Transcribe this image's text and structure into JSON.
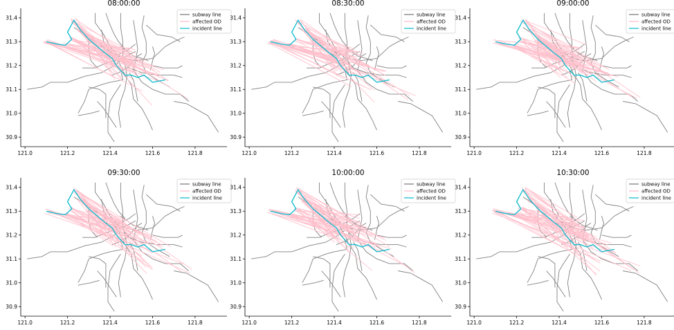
{
  "colors": {
    "subway": "#808080",
    "affected": "#ffc0cb",
    "incident": "#17becf"
  },
  "legend": {
    "subway": "subway line",
    "affected": "affected OD",
    "incident": "incident line"
  },
  "chart_data": {
    "type": "line",
    "panels": [
      {
        "title": "08:00:00",
        "seed": 11
      },
      {
        "title": "08:30:00",
        "seed": 23
      },
      {
        "title": "09:00:00",
        "seed": 37
      },
      {
        "title": "09:30:00",
        "seed": 41
      },
      {
        "title": "10:00:00",
        "seed": 53
      },
      {
        "title": "10:30:00",
        "seed": 67
      }
    ],
    "xlim": [
      120.98,
      121.95
    ],
    "ylim": [
      30.86,
      31.44
    ],
    "xticks": [
      "121.0",
      "121.2",
      "121.4",
      "121.6",
      "121.8"
    ],
    "yticks": [
      "30.9",
      "31.0",
      "31.1",
      "31.2",
      "31.3",
      "31.4"
    ],
    "legend_position": "upper right",
    "subway_lines": [
      [
        [
          121.01,
          31.1
        ],
        [
          121.08,
          31.11
        ],
        [
          121.12,
          31.13
        ],
        [
          121.2,
          31.13
        ],
        [
          121.28,
          31.155
        ],
        [
          121.36,
          31.17
        ],
        [
          121.42,
          31.2
        ],
        [
          121.45,
          31.22
        ]
      ],
      [
        [
          121.36,
          31.35
        ],
        [
          121.37,
          31.3
        ],
        [
          121.4,
          31.26
        ],
        [
          121.43,
          31.23
        ],
        [
          121.45,
          31.2
        ],
        [
          121.47,
          31.16
        ],
        [
          121.5,
          31.12
        ],
        [
          121.51,
          31.06
        ],
        [
          121.55,
          31.02
        ],
        [
          121.58,
          30.97
        ],
        [
          121.6,
          30.93
        ]
      ],
      [
        [
          121.33,
          31.42
        ],
        [
          121.33,
          31.38
        ],
        [
          121.37,
          31.33
        ],
        [
          121.4,
          31.28
        ],
        [
          121.43,
          31.25
        ],
        [
          121.46,
          31.22
        ],
        [
          121.49,
          31.19
        ],
        [
          121.55,
          31.17
        ],
        [
          121.62,
          31.16
        ],
        [
          121.7,
          31.16
        ],
        [
          121.74,
          31.15
        ]
      ],
      [
        [
          121.23,
          31.36
        ],
        [
          121.28,
          31.33
        ],
        [
          121.33,
          31.3
        ],
        [
          121.38,
          31.27
        ],
        [
          121.42,
          31.25
        ],
        [
          121.47,
          31.23
        ],
        [
          121.52,
          31.22
        ],
        [
          121.6,
          31.23
        ],
        [
          121.66,
          31.28
        ],
        [
          121.7,
          31.3
        ],
        [
          121.75,
          31.32
        ]
      ],
      [
        [
          121.45,
          31.42
        ],
        [
          121.45,
          31.36
        ],
        [
          121.46,
          31.3
        ],
        [
          121.46,
          31.24
        ],
        [
          121.47,
          31.2
        ],
        [
          121.48,
          31.16
        ],
        [
          121.47,
          31.1
        ],
        [
          121.45,
          31.05
        ],
        [
          121.44,
          31.0
        ],
        [
          121.45,
          30.94
        ]
      ],
      [
        [
          121.3,
          31.11
        ],
        [
          121.35,
          31.1
        ],
        [
          121.38,
          31.08
        ],
        [
          121.38,
          31.03
        ],
        [
          121.38,
          30.98
        ]
      ],
      [
        [
          121.51,
          31.39
        ],
        [
          121.52,
          31.33
        ],
        [
          121.53,
          31.27
        ],
        [
          121.52,
          31.22
        ],
        [
          121.51,
          31.18
        ],
        [
          121.55,
          31.13
        ],
        [
          121.6,
          31.1
        ],
        [
          121.66,
          31.08
        ],
        [
          121.73,
          31.08
        ],
        [
          121.77,
          31.05
        ]
      ],
      [
        [
          121.56,
          31.41
        ],
        [
          121.55,
          31.36
        ],
        [
          121.57,
          31.3
        ],
        [
          121.57,
          31.25
        ],
        [
          121.55,
          31.21
        ],
        [
          121.57,
          31.17
        ],
        [
          121.62,
          31.14
        ],
        [
          121.68,
          31.11
        ]
      ],
      [
        [
          121.57,
          31.37
        ],
        [
          121.62,
          31.33
        ],
        [
          121.69,
          31.32
        ],
        [
          121.73,
          31.3
        ]
      ],
      [
        [
          121.6,
          31.2
        ],
        [
          121.65,
          31.19
        ],
        [
          121.72,
          31.19
        ],
        [
          121.74,
          31.2
        ]
      ],
      [
        [
          121.7,
          31.05
        ],
        [
          121.76,
          31.04
        ],
        [
          121.8,
          31.02
        ],
        [
          121.86,
          30.99
        ],
        [
          121.91,
          30.92
        ]
      ],
      [
        [
          121.3,
          31.31
        ],
        [
          121.3,
          31.26
        ],
        [
          121.31,
          31.22
        ],
        [
          121.34,
          31.19
        ]
      ],
      [
        [
          121.45,
          31.12
        ],
        [
          121.42,
          31.08
        ],
        [
          121.4,
          31.05
        ],
        [
          121.39,
          30.98
        ],
        [
          121.39,
          30.92
        ],
        [
          121.42,
          30.88
        ]
      ],
      [
        [
          121.45,
          31.18
        ],
        [
          121.46,
          31.14
        ],
        [
          121.4,
          31.13
        ],
        [
          121.36,
          31.12
        ],
        [
          121.3,
          31.1
        ],
        [
          121.28,
          31.05
        ],
        [
          121.25,
          31.0
        ]
      ],
      [
        [
          121.34,
          31.05
        ],
        [
          121.37,
          31.02
        ],
        [
          121.4,
          30.98
        ],
        [
          121.43,
          30.94
        ]
      ],
      [
        [
          121.35,
          31.01
        ],
        [
          121.31,
          31.0
        ],
        [
          121.25,
          30.99
        ]
      ],
      [
        [
          121.27,
          31.19
        ],
        [
          121.33,
          31.19
        ],
        [
          121.38,
          31.21
        ],
        [
          121.42,
          31.22
        ],
        [
          121.48,
          31.24
        ],
        [
          121.52,
          31.26
        ]
      ],
      [
        [
          121.36,
          31.26
        ],
        [
          121.41,
          31.24
        ],
        [
          121.45,
          31.25
        ],
        [
          121.49,
          31.27
        ],
        [
          121.52,
          31.29
        ]
      ],
      [
        [
          121.45,
          31.28
        ],
        [
          121.48,
          31.26
        ],
        [
          121.51,
          31.24
        ],
        [
          121.55,
          31.23
        ],
        [
          121.58,
          31.22
        ]
      ],
      [
        [
          121.41,
          31.16
        ],
        [
          121.44,
          31.17
        ],
        [
          121.48,
          31.19
        ],
        [
          121.5,
          31.21
        ],
        [
          121.53,
          31.24
        ],
        [
          121.55,
          31.25
        ]
      ],
      [
        [
          121.38,
          31.42
        ],
        [
          121.4,
          31.37
        ],
        [
          121.42,
          31.33
        ],
        [
          121.44,
          31.3
        ],
        [
          121.47,
          31.27
        ]
      ],
      [
        [
          121.49,
          31.17
        ],
        [
          121.51,
          31.14
        ],
        [
          121.52,
          31.1
        ],
        [
          121.53,
          31.05
        ]
      ],
      [
        [
          121.6,
          31.28
        ],
        [
          121.61,
          31.25
        ],
        [
          121.6,
          31.22
        ],
        [
          121.59,
          31.18
        ]
      ]
    ],
    "incident_line": [
      [
        121.1,
        31.3
      ],
      [
        121.15,
        31.29
      ],
      [
        121.19,
        31.285
      ],
      [
        121.22,
        31.31
      ],
      [
        121.2,
        31.34
      ],
      [
        121.23,
        31.39
      ],
      [
        121.26,
        31.35
      ],
      [
        121.3,
        31.31
      ],
      [
        121.34,
        31.28
      ],
      [
        121.38,
        31.25
      ],
      [
        121.41,
        31.23
      ],
      [
        121.43,
        31.2
      ],
      [
        121.45,
        31.18
      ],
      [
        121.47,
        31.16
      ],
      [
        121.5,
        31.16
      ],
      [
        121.53,
        31.15
      ],
      [
        121.56,
        31.16
      ],
      [
        121.6,
        31.13
      ],
      [
        121.63,
        31.135
      ],
      [
        121.66,
        31.14
      ]
    ],
    "od_origins": [
      [
        121.1,
        31.3
      ],
      [
        121.23,
        31.39
      ],
      [
        121.22,
        31.31
      ],
      [
        121.3,
        31.31
      ],
      [
        121.26,
        31.35
      ],
      [
        121.19,
        31.285
      ]
    ],
    "od_destinations": [
      [
        121.44,
        31.21
      ],
      [
        121.47,
        31.22
      ],
      [
        121.5,
        31.22
      ],
      [
        121.52,
        31.18
      ],
      [
        121.55,
        31.16
      ],
      [
        121.6,
        31.14
      ],
      [
        121.63,
        31.17
      ],
      [
        121.76,
        31.06
      ],
      [
        121.58,
        31.05
      ],
      [
        121.48,
        31.24
      ],
      [
        121.46,
        31.19
      ],
      [
        121.42,
        31.2
      ],
      [
        121.52,
        31.26
      ],
      [
        121.55,
        31.21
      ],
      [
        121.49,
        31.13
      ],
      [
        121.57,
        31.1
      ],
      [
        121.43,
        31.16
      ],
      [
        121.5,
        31.27
      ],
      [
        121.53,
        31.23
      ],
      [
        121.46,
        31.26
      ],
      [
        121.4,
        31.18
      ],
      [
        121.58,
        31.18
      ],
      [
        121.66,
        31.14
      ],
      [
        121.51,
        31.19
      ]
    ]
  }
}
